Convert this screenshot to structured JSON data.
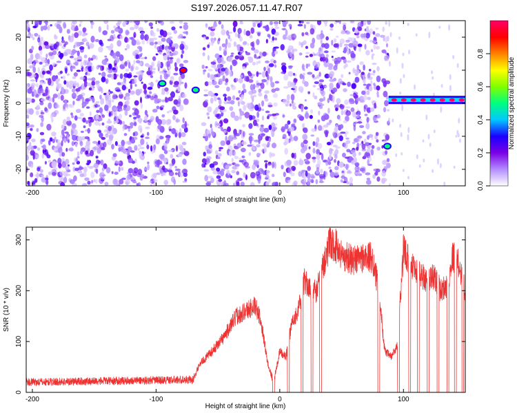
{
  "title": "S197.2026.057.11.47.R07",
  "colorbar": {
    "label": "Normalized spectral amplitude",
    "ticks": [
      "0.0",
      "0.2",
      "0.4",
      "0.6",
      "0.8"
    ],
    "tick_values": [
      0.0,
      0.2,
      0.4,
      0.6,
      0.8
    ],
    "range": [
      0,
      1
    ],
    "colors": [
      "#ffffff",
      "#b48cff",
      "#7a00e6",
      "#1a00ff",
      "#00c8ff",
      "#00ff80",
      "#80ff00",
      "#ffff00",
      "#ff8000",
      "#ff0000",
      "#ff0066"
    ]
  },
  "chart_data": [
    {
      "type": "heatmap",
      "name": "spectrogram",
      "xlabel": "Height of straight line (km)",
      "ylabel": "Frequency (Hz)",
      "xlim": [
        -205,
        150
      ],
      "ylim": [
        -25,
        25
      ],
      "xticks": [
        -200,
        -100,
        0,
        100
      ],
      "xtick_labels": [
        "-200",
        "-100",
        "0",
        "100"
      ],
      "yticks": [
        -20,
        -10,
        0,
        10,
        20
      ],
      "ytick_labels": [
        "-20",
        "-10",
        "0",
        "10",
        "20"
      ],
      "gaps_km": [
        [
          -75,
          -62
        ],
        [
          -2,
          2
        ],
        [
          13,
          16
        ],
        [
          80,
          83
        ]
      ],
      "hotspots": [
        {
          "x_km": -95,
          "freq_hz": 6,
          "amplitude": 0.5
        },
        {
          "x_km": -78,
          "freq_hz": 10,
          "amplitude": 0.9
        },
        {
          "x_km": -68,
          "freq_hz": 4,
          "amplitude": 0.45
        },
        {
          "x_km": 87,
          "freq_hz": -13,
          "amplitude": 0.45
        }
      ],
      "band": {
        "x_range_km": [
          88,
          150
        ],
        "freq_hz": 1,
        "amplitude": 0.95
      }
    },
    {
      "type": "line",
      "name": "snr",
      "xlabel": "Height of straight line (km)",
      "ylabel": "SNR (10 * v/v)",
      "xlim": [
        -205,
        150
      ],
      "ylim": [
        0,
        325
      ],
      "xticks": [
        -200,
        -100,
        0,
        100
      ],
      "xtick_labels": [
        "-200",
        "-100",
        "0",
        "100"
      ],
      "yticks": [
        0,
        100,
        200,
        300
      ],
      "ytick_labels": [
        "0",
        "100",
        "200",
        "300"
      ],
      "color": "#ee3333",
      "x": [
        -205,
        -70,
        -65,
        -55,
        -45,
        -35,
        -28,
        -20,
        -15,
        -10,
        -5,
        0,
        5,
        10,
        15,
        20,
        25,
        30,
        35,
        40,
        45,
        50,
        55,
        60,
        65,
        70,
        75,
        80,
        85,
        90,
        95,
        100,
        105,
        110,
        115,
        120,
        125,
        130,
        135,
        140,
        145,
        150
      ],
      "y": [
        20,
        25,
        55,
        80,
        110,
        150,
        160,
        170,
        140,
        60,
        20,
        80,
        70,
        140,
        160,
        220,
        200,
        200,
        250,
        290,
        290,
        270,
        265,
        260,
        265,
        265,
        265,
        200,
        80,
        70,
        90,
        280,
        260,
        240,
        230,
        220,
        230,
        200,
        210,
        270,
        250,
        200
      ],
      "drops_to_zero_km": [
        -5,
        7,
        18,
        26,
        33,
        80,
        96,
        105,
        112,
        120,
        128,
        136,
        142,
        148
      ]
    }
  ]
}
